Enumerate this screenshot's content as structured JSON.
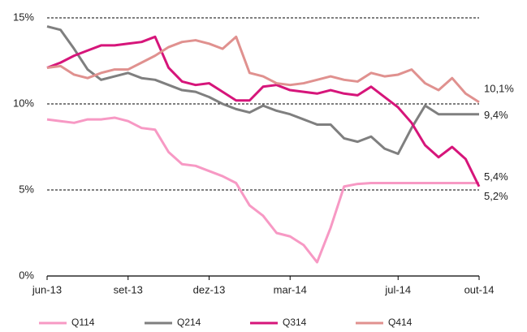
{
  "chart_data": {
    "type": "line",
    "categories": [
      "jun-13",
      null,
      null,
      null,
      null,
      null,
      "set-13",
      null,
      null,
      null,
      null,
      null,
      "dez-13",
      null,
      null,
      null,
      null,
      null,
      "mar-14",
      null,
      null,
      null,
      null,
      null,
      null,
      null,
      "jul-14",
      null,
      null,
      null,
      null,
      null,
      "out-14"
    ],
    "series": [
      {
        "name": "Q114",
        "color": "#f799c4",
        "values": [
          9.1,
          9.0,
          8.9,
          9.1,
          9.1,
          9.2,
          9.0,
          8.6,
          8.5,
          7.2,
          6.5,
          6.4,
          6.1,
          5.8,
          5.4,
          4.1,
          3.5,
          2.5,
          2.3,
          1.8,
          0.8,
          2.8,
          5.2,
          5.35,
          5.4,
          5.4,
          5.4,
          5.4,
          5.4,
          5.4,
          5.4,
          5.4,
          5.4
        ],
        "value_labels": [
          null,
          null,
          null,
          null,
          null,
          null,
          null,
          null,
          null,
          null,
          null,
          null,
          null,
          null,
          null,
          null,
          null,
          null,
          null,
          null,
          null,
          null,
          null,
          null,
          null,
          null,
          null,
          null,
          null,
          null,
          null,
          null,
          "5,4%"
        ]
      },
      {
        "name": "Q214",
        "color": "#7f7f7f",
        "values": [
          14.5,
          14.3,
          13.2,
          12.0,
          11.4,
          11.6,
          11.8,
          11.5,
          11.4,
          11.1,
          10.8,
          10.7,
          10.4,
          10.0,
          9.7,
          9.5,
          9.9,
          9.6,
          9.4,
          9.1,
          8.8,
          8.8,
          8.0,
          7.8,
          8.1,
          7.4,
          7.1,
          8.6,
          9.9,
          9.4,
          9.4,
          9.4,
          9.4
        ],
        "value_labels": [
          null,
          null,
          null,
          null,
          null,
          null,
          null,
          null,
          null,
          null,
          null,
          null,
          null,
          null,
          null,
          null,
          null,
          null,
          null,
          null,
          null,
          null,
          null,
          null,
          null,
          null,
          null,
          null,
          null,
          null,
          null,
          null,
          "9,4%"
        ]
      },
      {
        "name": "Q314",
        "color": "#d6157a",
        "values": [
          12.1,
          12.4,
          12.8,
          13.1,
          13.4,
          13.4,
          13.5,
          13.6,
          13.9,
          12.1,
          11.3,
          11.1,
          11.2,
          10.7,
          10.2,
          10.2,
          11.0,
          11.1,
          10.8,
          10.7,
          10.6,
          10.8,
          10.6,
          10.5,
          11.0,
          10.4,
          9.8,
          8.9,
          7.6,
          6.9,
          7.5,
          6.8,
          5.2
        ],
        "value_labels": [
          null,
          null,
          null,
          null,
          null,
          null,
          null,
          null,
          null,
          null,
          null,
          null,
          null,
          null,
          null,
          null,
          null,
          null,
          null,
          null,
          null,
          null,
          null,
          null,
          null,
          null,
          null,
          null,
          null,
          null,
          null,
          null,
          "5,2%"
        ]
      },
      {
        "name": "Q414",
        "color": "#e0918f",
        "values": [
          12.1,
          12.2,
          11.7,
          11.5,
          11.8,
          12.0,
          12.0,
          12.4,
          12.8,
          13.3,
          13.6,
          13.7,
          13.5,
          13.2,
          13.9,
          11.8,
          11.6,
          11.2,
          11.1,
          11.2,
          11.4,
          11.6,
          11.4,
          11.3,
          11.8,
          11.6,
          11.7,
          12.0,
          11.2,
          10.8,
          11.5,
          10.6,
          10.1
        ],
        "value_labels": [
          null,
          null,
          null,
          null,
          null,
          null,
          null,
          null,
          null,
          null,
          null,
          null,
          null,
          null,
          null,
          null,
          null,
          null,
          null,
          null,
          null,
          null,
          null,
          null,
          null,
          null,
          null,
          null,
          null,
          null,
          null,
          null,
          "10,1%"
        ]
      }
    ],
    "ylim": [
      0,
      15
    ],
    "yticks": [
      {
        "value": 0,
        "label": "0%"
      },
      {
        "value": 5,
        "label": "5%"
      },
      {
        "value": 10,
        "label": "10%"
      },
      {
        "value": 15,
        "label": "15%"
      }
    ],
    "grid": true,
    "legend": "bottom"
  }
}
